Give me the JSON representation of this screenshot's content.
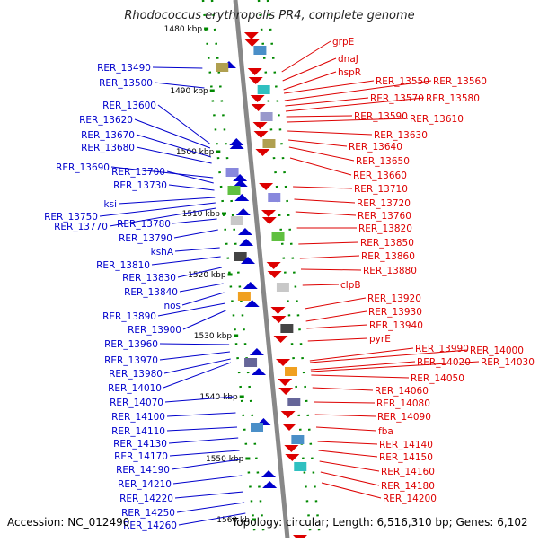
{
  "title": "Rhodococcus erythropolis PR4, complete genome",
  "footer": {
    "accession": "Accession: NC_012490",
    "topology": "Topology: circular; Length: 6,516,310 bp; Genes: 6,102"
  },
  "colors": {
    "left_genes": "#0000cc",
    "right_genes": "#dd0000",
    "kbp_marker": "#008800",
    "backbone": "#888888"
  },
  "kbp_markers": [
    "1480 kbp",
    "1490 kbp",
    "1500 kbp",
    "1510 kbp",
    "1520 kbp",
    "1530 kbp",
    "1540 kbp",
    "1550 kbp",
    "1560 kb"
  ],
  "left_labels": [
    "RER_13490",
    "RER_13500",
    "RER_13600",
    "RER_13620",
    "RER_13670",
    "RER_13680",
    "RER_13690",
    "RER_13700",
    "RER_13730",
    "ksi",
    "RER_13750",
    "RER_13770",
    "RER_13780",
    "RER_13790",
    "kshA",
    "RER_13810",
    "RER_13830",
    "RER_13840",
    "nos",
    "RER_13890",
    "RER_13900",
    "RER_13960",
    "RER_13970",
    "RER_13980",
    "RER_14010",
    "RER_14070",
    "RER_14100",
    "RER_14110",
    "RER_14130",
    "RER_14170",
    "RER_14190",
    "RER_14210",
    "RER_14220",
    "RER_14250",
    "RER_14260"
  ],
  "right_labels": [
    "grpE",
    "dnaJ",
    "hspR",
    "RER_13550",
    "RER_13560",
    "RER_13570",
    "RER_13580",
    "RER_13590",
    "RER_13610",
    "RER_13630",
    "RER_13640",
    "RER_13650",
    "RER_13660",
    "RER_13710",
    "RER_13720",
    "RER_13760",
    "RER_13820",
    "RER_13850",
    "RER_13860",
    "RER_13880",
    "clpB",
    "RER_13920",
    "RER_13930",
    "RER_13940",
    "pyrE",
    "RER_13990",
    "RER_14000",
    "RER_14020",
    "RER_14030",
    "RER_14050",
    "RER_14060",
    "RER_14080",
    "RER_14090",
    "fba",
    "RER_14140",
    "RER_14150",
    "RER_14160",
    "RER_14180",
    "RER_14200"
  ]
}
